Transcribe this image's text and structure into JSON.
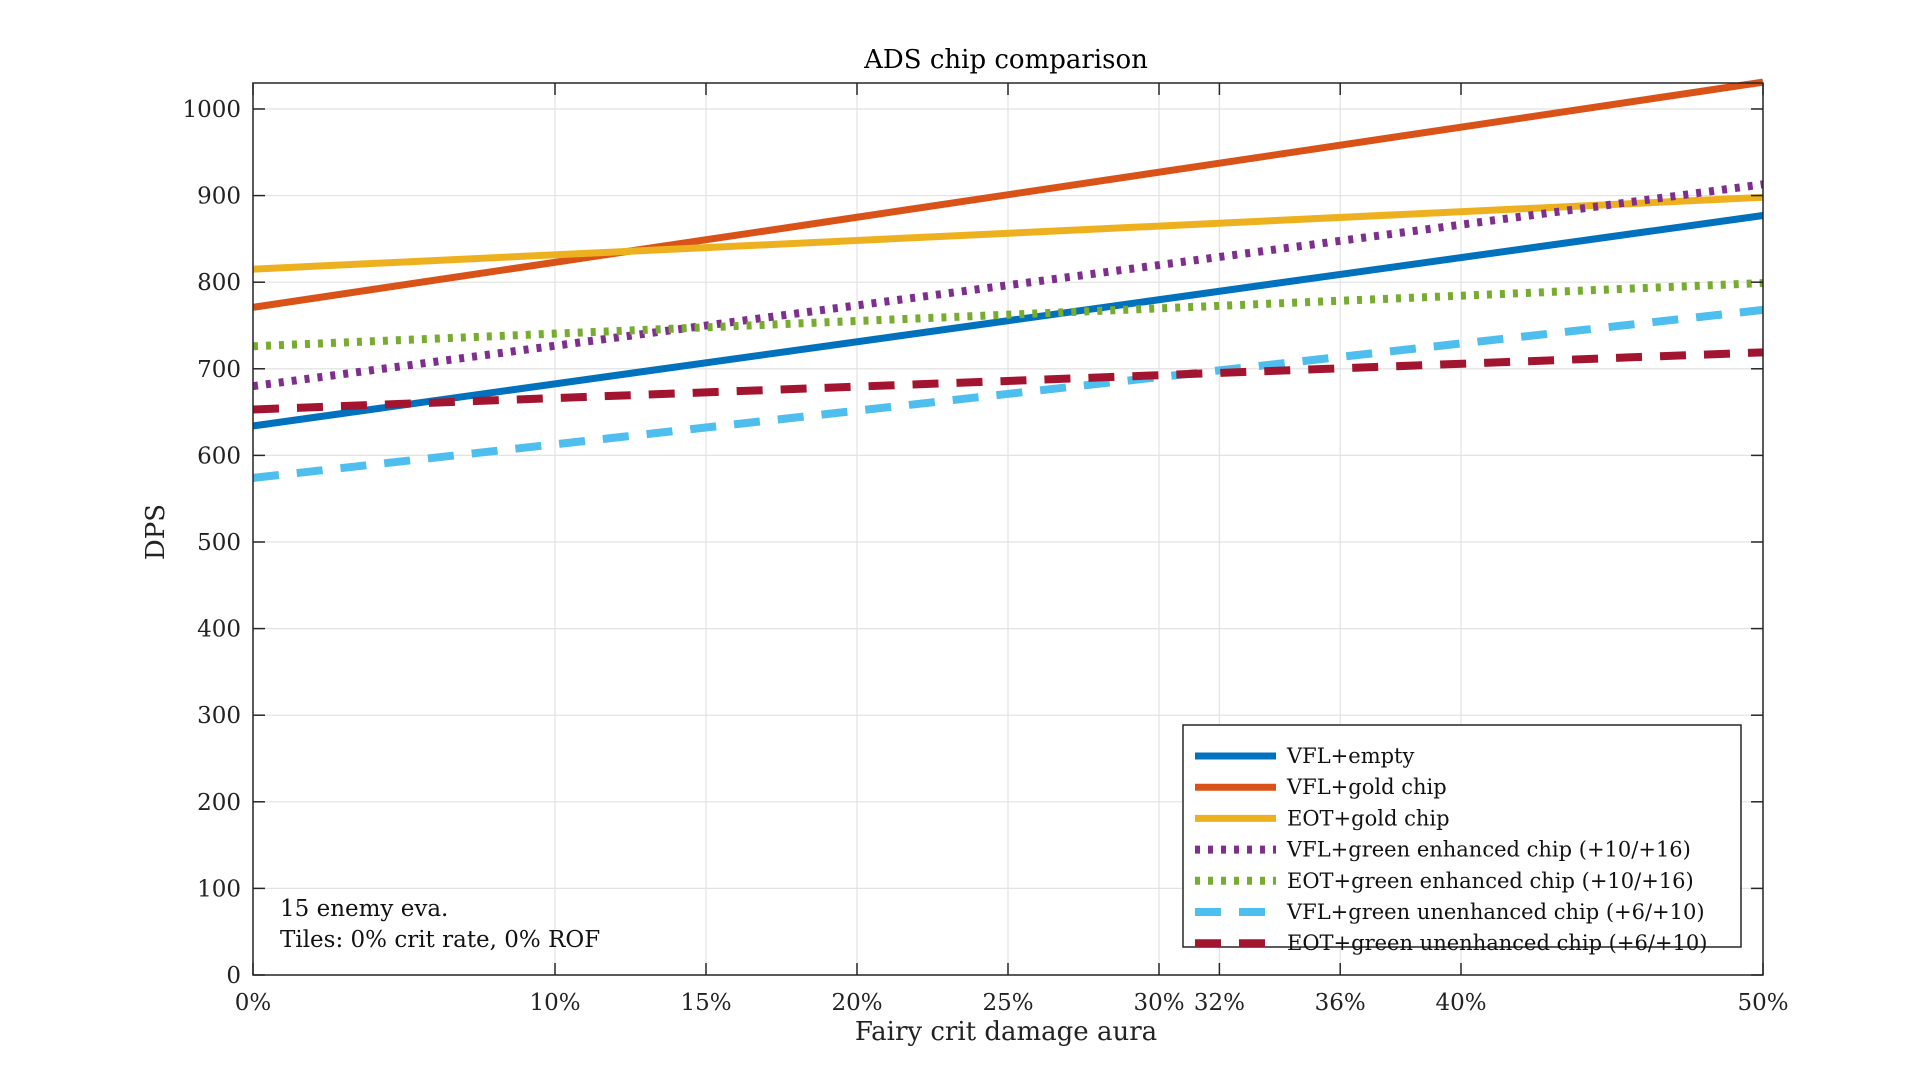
{
  "chart_data": {
    "type": "line",
    "title": "ADS chip comparison",
    "xlabel": "Fairy crit damage aura",
    "ylabel": "DPS",
    "xlim": [
      0,
      50
    ],
    "ylim": [
      0,
      1030
    ],
    "x_ticks": [
      0,
      10,
      15,
      20,
      25,
      30,
      32,
      36,
      40,
      50
    ],
    "x_tick_labels": [
      "0%",
      "10%",
      "15%",
      "20%",
      "25%",
      "30%",
      "32%",
      "36%",
      "40%",
      "50%"
    ],
    "y_ticks": [
      0,
      100,
      200,
      300,
      400,
      500,
      600,
      700,
      800,
      900,
      1000
    ],
    "y_tick_labels": [
      "0",
      "100",
      "200",
      "300",
      "400",
      "500",
      "600",
      "700",
      "800",
      "900",
      "1000"
    ],
    "grid": true,
    "legend_position": "bottom-right",
    "series": [
      {
        "name": "VFL+empty",
        "color": "#0072BD",
        "style": "solid",
        "x": [
          0,
          50
        ],
        "values": [
          634,
          877
        ]
      },
      {
        "name": "VFL+gold chip",
        "color": "#D95319",
        "style": "solid",
        "x": [
          0,
          50
        ],
        "values": [
          771,
          1031
        ]
      },
      {
        "name": "EOT+gold chip",
        "color": "#EDB120",
        "style": "solid",
        "x": [
          0,
          50
        ],
        "values": [
          815,
          898
        ]
      },
      {
        "name": "VFL+green enhanced chip (+10/+16)",
        "color": "#7E2F8E",
        "style": "dotted",
        "x": [
          0,
          50
        ],
        "values": [
          680,
          913
        ]
      },
      {
        "name": "EOT+green enhanced chip (+10/+16)",
        "color": "#77AC30",
        "style": "dotted",
        "x": [
          0,
          50
        ],
        "values": [
          726,
          799
        ]
      },
      {
        "name": "VFL+green unenhanced chip (+6/+10)",
        "color": "#4DBEEE",
        "style": "dashed",
        "x": [
          0,
          50
        ],
        "values": [
          574,
          768
        ]
      },
      {
        "name": "EOT+green unenhanced chip (+6/+10)",
        "color": "#A2142F",
        "style": "dashed",
        "x": [
          0,
          50
        ],
        "values": [
          653,
          719
        ]
      }
    ],
    "annotations": [
      "15 enemy eva.",
      "Tiles: 0% crit rate, 0% ROF"
    ]
  }
}
